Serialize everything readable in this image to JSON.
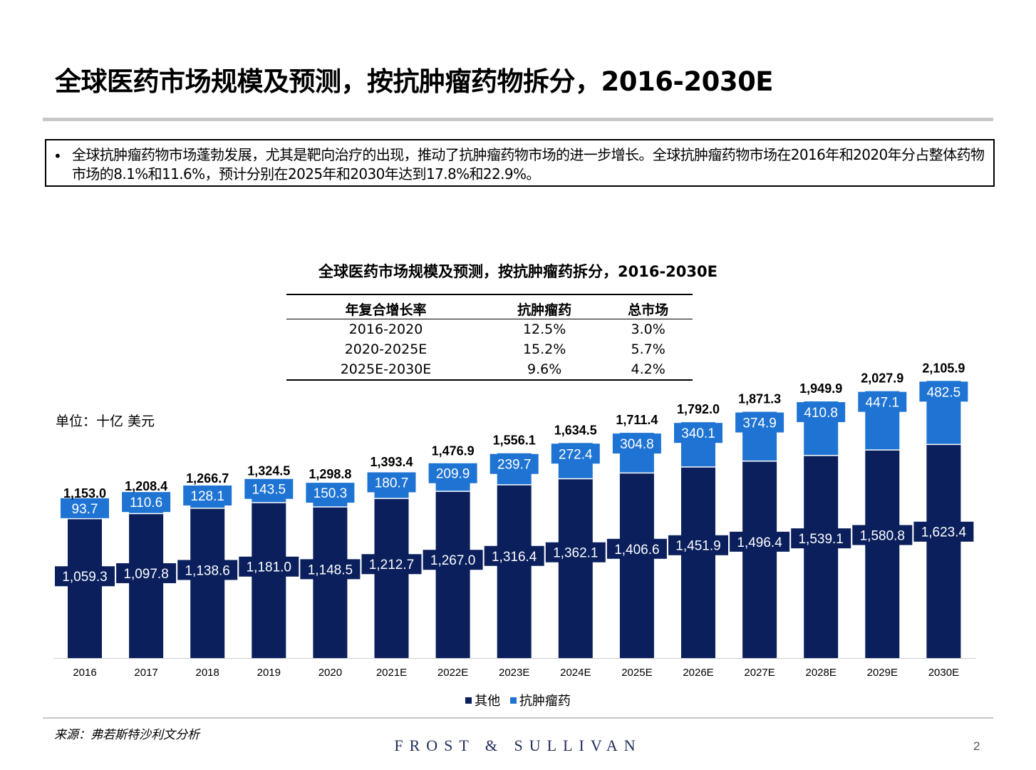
{
  "slide": {
    "title": "全球医药市场规模及预测，按抗肿瘤药物拆分，2016-2030E",
    "bullet": "•",
    "summary": "全球抗肿瘤药物市场蓬勃发展，尤其是靶向治疗的出现，推动了抗肿瘤药物市场的进一步增长。全球抗肿瘤药物市场在2016年和2020年分占整体药物市场的8.1%和11.6%，预计分别在2025年和2030年达到17.8%和22.9%。",
    "unit": "单位：十亿 美元",
    "source": "来源：弗若斯特沙利文分析",
    "brand": "FROST & SULLIVAN",
    "page": "2"
  },
  "cagr_table": {
    "headers": [
      "年复合增长率",
      "抗肿瘤药",
      "总市场"
    ],
    "rows": [
      [
        "2016-2020",
        "12.5%",
        "3.0%"
      ],
      [
        "2020-2025E",
        "15.2%",
        "5.7%"
      ],
      [
        "2025E-2030E",
        "9.6%",
        "4.2%"
      ]
    ]
  },
  "chart_data": {
    "type": "bar",
    "stacked": true,
    "title": "全球医药市场规模及预测，按抗肿瘤药拆分，2016-2030E",
    "categories": [
      "2016",
      "2017",
      "2018",
      "2019",
      "2020",
      "2021E",
      "2022E",
      "2023E",
      "2024E",
      "2025E",
      "2026E",
      "2027E",
      "2028E",
      "2029E",
      "2030E"
    ],
    "series": [
      {
        "name": "其他",
        "color": "#0a1f5c",
        "values": [
          1059.3,
          1097.8,
          1138.6,
          1181.0,
          1148.5,
          1212.7,
          1267.0,
          1316.4,
          1362.1,
          1406.6,
          1451.9,
          1496.4,
          1539.1,
          1580.8,
          1623.4
        ],
        "labels": [
          "1,059.3",
          "1,097.8",
          "1,138.6",
          "1,181.0",
          "1,148.5",
          "1,212.7",
          "1,267.0",
          "1,316.4",
          "1,362.1",
          "1,406.6",
          "1,451.9",
          "1,496.4",
          "1,539.1",
          "1,580.8",
          "1,623.4"
        ]
      },
      {
        "name": "抗肿瘤药",
        "color": "#1f74d3",
        "values": [
          93.7,
          110.6,
          128.1,
          143.5,
          150.3,
          180.7,
          209.9,
          239.7,
          272.4,
          304.8,
          340.1,
          374.9,
          410.8,
          447.1,
          482.5
        ],
        "labels": [
          "93.7",
          "110.6",
          "128.1",
          "143.5",
          "150.3",
          "180.7",
          "209.9",
          "239.7",
          "272.4",
          "304.8",
          "340.1",
          "374.9",
          "410.8",
          "447.1",
          "482.5"
        ]
      }
    ],
    "totals": [
      1153.0,
      1208.4,
      1266.7,
      1324.5,
      1298.8,
      1393.4,
      1476.9,
      1556.1,
      1634.5,
      1711.4,
      1792.0,
      1871.3,
      1949.9,
      2027.9,
      2105.9
    ],
    "total_labels": [
      "1,153.0",
      "1,208.4",
      "1,266.7",
      "1,324.5",
      "1,298.8",
      "1,393.4",
      "1,476.9",
      "1,556.1",
      "1,634.5",
      "1,711.4",
      "1,792.0",
      "1,871.3",
      "1,949.9",
      "2,027.9",
      "2,105.9"
    ],
    "legend": "bottom",
    "grid": false
  }
}
